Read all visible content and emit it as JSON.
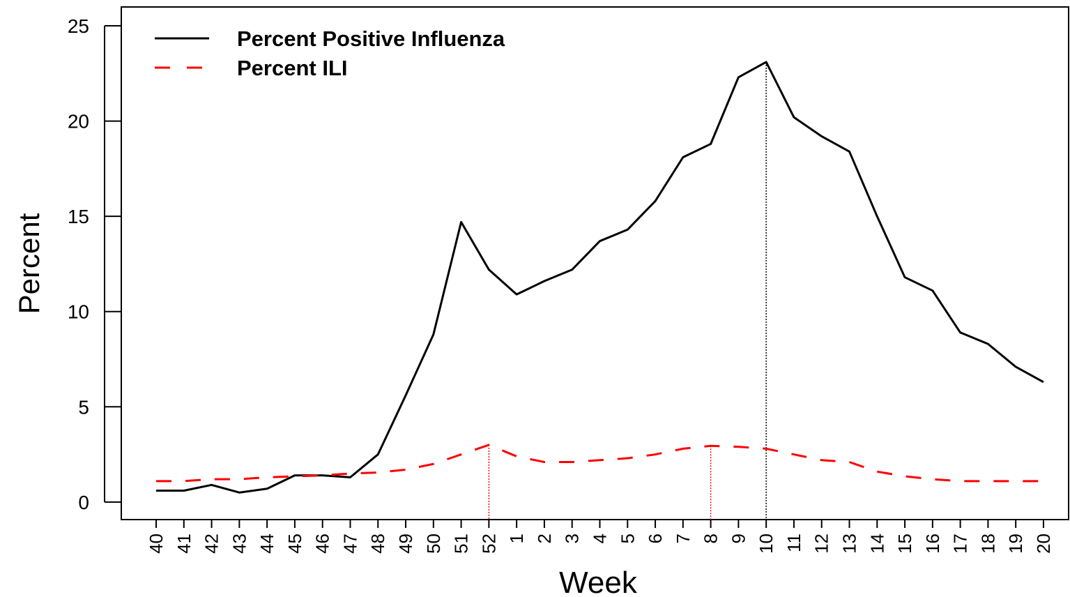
{
  "chart_data": {
    "type": "line",
    "x_label": "Week",
    "y_label": "Percent",
    "categories": [
      "40",
      "41",
      "42",
      "43",
      "44",
      "45",
      "46",
      "47",
      "48",
      "49",
      "50",
      "51",
      "52",
      "1",
      "2",
      "3",
      "4",
      "5",
      "6",
      "7",
      "8",
      "9",
      "10",
      "11",
      "12",
      "13",
      "14",
      "15",
      "16",
      "17",
      "18",
      "19",
      "20"
    ],
    "series": [
      {
        "name": "Percent Positive Influenza",
        "color": "#000000",
        "dash": "solid",
        "values": [
          0.6,
          0.6,
          0.9,
          0.5,
          0.7,
          1.4,
          1.4,
          1.3,
          2.5,
          5.6,
          8.8,
          14.7,
          12.2,
          10.9,
          11.6,
          12.2,
          13.7,
          14.3,
          15.8,
          18.1,
          18.8,
          22.3,
          23.1,
          20.2,
          19.2,
          18.4,
          15.0,
          11.8,
          11.1,
          8.9,
          8.3,
          7.1,
          6.3
        ]
      },
      {
        "name": "Percent ILI",
        "color": "#ff0000",
        "dash": "dashed",
        "values": [
          1.1,
          1.1,
          1.2,
          1.2,
          1.3,
          1.35,
          1.4,
          1.5,
          1.55,
          1.7,
          2.0,
          2.5,
          3.0,
          2.4,
          2.1,
          2.1,
          2.2,
          2.3,
          2.5,
          2.8,
          2.95,
          2.9,
          2.8,
          2.5,
          2.2,
          2.1,
          1.6,
          1.35,
          1.2,
          1.1,
          1.1,
          1.1,
          1.1
        ]
      }
    ],
    "drop_lines": [
      {
        "series": 1,
        "category": "52"
      },
      {
        "series": 1,
        "category": "8"
      },
      {
        "series": 0,
        "category": "10"
      }
    ],
    "ylim": [
      -0.92,
      25.99
    ],
    "yticks": [
      0,
      5,
      10,
      15,
      20,
      25
    ],
    "legend": "top-left"
  }
}
